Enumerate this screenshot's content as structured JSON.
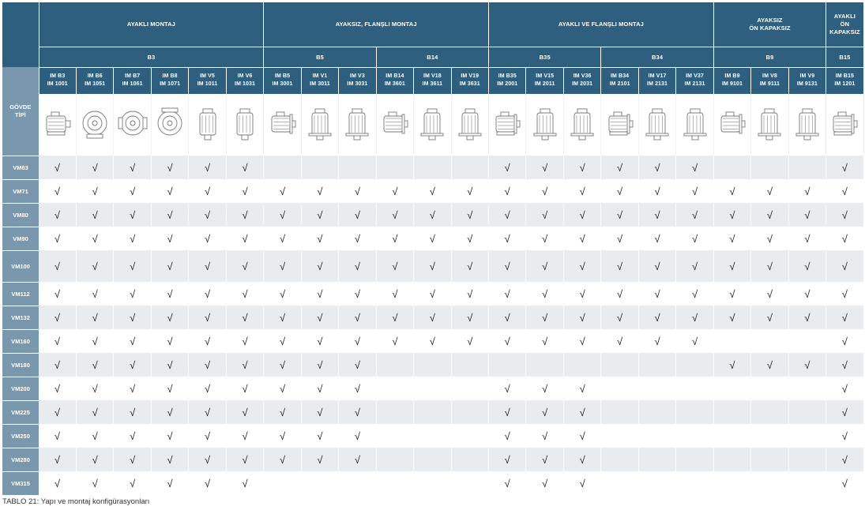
{
  "groups": [
    {
      "label": "AYAKLI MONTAJ",
      "span": 6
    },
    {
      "label": "AYAKSIZ, FLANŞLI MONTAJ",
      "span": 6
    },
    {
      "label": "AYAKLI VE FLANŞLI MONTAJ",
      "span": 6
    },
    {
      "label": "AYAKSIZ\nÖN KAPAKSIZ",
      "span": 3
    },
    {
      "label": "AYAKLI\nÖN KAPAKSIZ",
      "span": 1
    }
  ],
  "subgroups": [
    {
      "label": "B3",
      "span": 6
    },
    {
      "label": "B5",
      "span": 3
    },
    {
      "label": "B14",
      "span": 3
    },
    {
      "label": "B35",
      "span": 3
    },
    {
      "label": "B34",
      "span": 3
    },
    {
      "label": "B9",
      "span": 3
    },
    {
      "label": "B15",
      "span": 1
    }
  ],
  "frame_header": "GÖVDE\nTİPİ",
  "columns": [
    "IM B3\nIM 1001",
    "IM B6\nIM 1051",
    "IM B7\nIM 1061",
    "IM B8\nIM 1071",
    "IM V5\nIM 1011",
    "IM V6\nIM 1031",
    "IM B5\nIM 3001",
    "IM V1\nIM 3011",
    "IM V3\nIM 3031",
    "IM B14\nIM 3601",
    "IM V18\nIM 3611",
    "IM V19\nIM 3631",
    "IM B35\nIM 2001",
    "IM V15\nIM 2011",
    "IM V36\nIM 2031",
    "IM B34\nIM 2101",
    "IM V17\nIM 2131",
    "IM V37\nIM 2131",
    "IM B9\nIM 9101",
    "IM V8\nIM 9111",
    "IM V9\nIM 9131",
    "IM B15\nIM 1201"
  ],
  "check_symbol": "√",
  "rows": [
    {
      "frame": "VM63",
      "marks": "1111110000001111110001"
    },
    {
      "frame": "VM71",
      "marks": "1111111111111111111111"
    },
    {
      "frame": "VM80",
      "marks": "1111111111111111111111"
    },
    {
      "frame": "VM90",
      "marks": "1111111111111111111111"
    },
    {
      "frame": "VM100",
      "marks": "1111111111111111111111"
    },
    {
      "frame": "VM112",
      "marks": "1111111111111111111111"
    },
    {
      "frame": "VM132",
      "marks": "1111111111111111111111"
    },
    {
      "frame": "VM160",
      "marks": "1111111111111111110001"
    },
    {
      "frame": "VM180",
      "marks": "1111111110000000001111"
    },
    {
      "frame": "VM200",
      "marks": "1111111110001110000001"
    },
    {
      "frame": "VM225",
      "marks": "1111111110001110000001"
    },
    {
      "frame": "VM250",
      "marks": "1111111110001110000001"
    },
    {
      "frame": "VM280",
      "marks": "1111111110001110000001"
    },
    {
      "frame": "VM315",
      "marks": "1111110000001110000001"
    }
  ],
  "caption": "TABLO 21: Yapı ve montaj konfigürasyonları"
}
